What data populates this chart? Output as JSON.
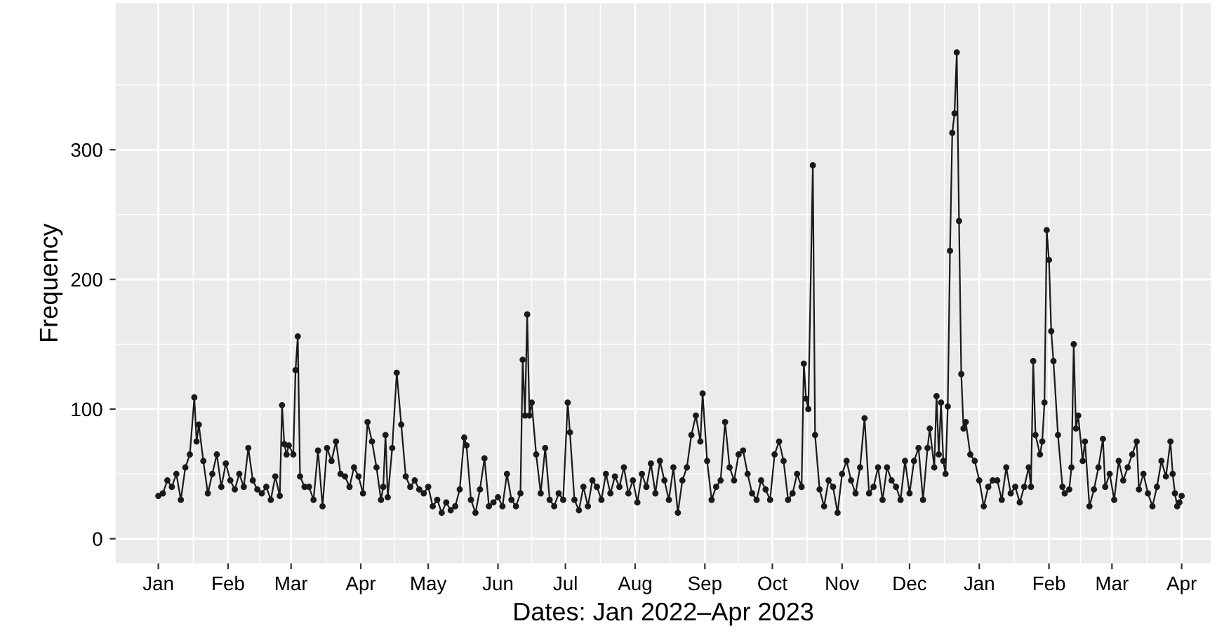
{
  "chart_data": {
    "type": "line",
    "xlabel": "Dates: Jan 2022–Apr 2023",
    "ylabel": "Frequency",
    "xlim": [
      "2021-12-13",
      "2023-04-14"
    ],
    "ylim": [
      -19,
      413
    ],
    "yticks": [
      0,
      100,
      200,
      300
    ],
    "xticks": [
      {
        "value": "2022-01-01",
        "label": "Jan"
      },
      {
        "value": "2022-02-01",
        "label": "Feb"
      },
      {
        "value": "2022-03-01",
        "label": "Mar"
      },
      {
        "value": "2022-04-01",
        "label": "Apr"
      },
      {
        "value": "2022-05-01",
        "label": "May"
      },
      {
        "value": "2022-06-01",
        "label": "Jun"
      },
      {
        "value": "2022-07-01",
        "label": "Jul"
      },
      {
        "value": "2022-08-01",
        "label": "Aug"
      },
      {
        "value": "2022-09-01",
        "label": "Sep"
      },
      {
        "value": "2022-10-01",
        "label": "Oct"
      },
      {
        "value": "2022-11-01",
        "label": "Nov"
      },
      {
        "value": "2022-12-01",
        "label": "Dec"
      },
      {
        "value": "2023-01-01",
        "label": "Jan"
      },
      {
        "value": "2023-02-01",
        "label": "Feb"
      },
      {
        "value": "2023-03-01",
        "label": "Mar"
      },
      {
        "value": "2023-04-01",
        "label": "Apr"
      }
    ],
    "grid": true,
    "marker": "circle",
    "line_style": "solid",
    "series": [
      {
        "color": "#1a1a1a",
        "x": [
          "2022-01-01",
          "2022-01-03",
          "2022-01-05",
          "2022-01-07",
          "2022-01-09",
          "2022-01-11",
          "2022-01-13",
          "2022-01-15",
          "2022-01-17",
          "2022-01-18",
          "2022-01-19",
          "2022-01-21",
          "2022-01-23",
          "2022-01-25",
          "2022-01-27",
          "2022-01-29",
          "2022-01-31",
          "2022-02-02",
          "2022-02-04",
          "2022-02-06",
          "2022-02-08",
          "2022-02-10",
          "2022-02-12",
          "2022-02-14",
          "2022-02-16",
          "2022-02-18",
          "2022-02-20",
          "2022-02-22",
          "2022-02-24",
          "2022-02-25",
          "2022-02-26",
          "2022-02-27",
          "2022-02-28",
          "2022-03-02",
          "2022-03-03",
          "2022-03-04",
          "2022-03-05",
          "2022-03-07",
          "2022-03-09",
          "2022-03-11",
          "2022-03-13",
          "2022-03-15",
          "2022-03-17",
          "2022-03-19",
          "2022-03-21",
          "2022-03-23",
          "2022-03-25",
          "2022-03-27",
          "2022-03-29",
          "2022-03-31",
          "2022-04-02",
          "2022-04-04",
          "2022-04-06",
          "2022-04-08",
          "2022-04-10",
          "2022-04-11",
          "2022-04-12",
          "2022-04-13",
          "2022-04-15",
          "2022-04-17",
          "2022-04-19",
          "2022-04-21",
          "2022-04-23",
          "2022-04-25",
          "2022-04-27",
          "2022-04-29",
          "2022-05-01",
          "2022-05-03",
          "2022-05-05",
          "2022-05-07",
          "2022-05-09",
          "2022-05-11",
          "2022-05-13",
          "2022-05-15",
          "2022-05-17",
          "2022-05-18",
          "2022-05-20",
          "2022-05-22",
          "2022-05-24",
          "2022-05-26",
          "2022-05-28",
          "2022-05-30",
          "2022-06-01",
          "2022-06-03",
          "2022-06-05",
          "2022-06-07",
          "2022-06-09",
          "2022-06-11",
          "2022-06-12",
          "2022-06-13",
          "2022-06-14",
          "2022-06-15",
          "2022-06-16",
          "2022-06-18",
          "2022-06-20",
          "2022-06-22",
          "2022-06-24",
          "2022-06-26",
          "2022-06-28",
          "2022-06-30",
          "2022-07-02",
          "2022-07-03",
          "2022-07-05",
          "2022-07-07",
          "2022-07-09",
          "2022-07-11",
          "2022-07-13",
          "2022-07-15",
          "2022-07-17",
          "2022-07-19",
          "2022-07-21",
          "2022-07-23",
          "2022-07-25",
          "2022-07-27",
          "2022-07-29",
          "2022-07-31",
          "2022-08-02",
          "2022-08-04",
          "2022-08-06",
          "2022-08-08",
          "2022-08-10",
          "2022-08-12",
          "2022-08-14",
          "2022-08-16",
          "2022-08-18",
          "2022-08-20",
          "2022-08-22",
          "2022-08-24",
          "2022-08-26",
          "2022-08-28",
          "2022-08-30",
          "2022-08-31",
          "2022-09-02",
          "2022-09-04",
          "2022-09-06",
          "2022-09-08",
          "2022-09-10",
          "2022-09-12",
          "2022-09-14",
          "2022-09-16",
          "2022-09-18",
          "2022-09-20",
          "2022-09-22",
          "2022-09-24",
          "2022-09-26",
          "2022-09-28",
          "2022-09-30",
          "2022-10-02",
          "2022-10-04",
          "2022-10-06",
          "2022-10-08",
          "2022-10-10",
          "2022-10-12",
          "2022-10-14",
          "2022-10-15",
          "2022-10-16",
          "2022-10-17",
          "2022-10-19",
          "2022-10-20",
          "2022-10-22",
          "2022-10-24",
          "2022-10-26",
          "2022-10-28",
          "2022-10-30",
          "2022-11-01",
          "2022-11-03",
          "2022-11-05",
          "2022-11-07",
          "2022-11-09",
          "2022-11-11",
          "2022-11-13",
          "2022-11-15",
          "2022-11-17",
          "2022-11-19",
          "2022-11-21",
          "2022-11-23",
          "2022-11-25",
          "2022-11-27",
          "2022-11-29",
          "2022-12-01",
          "2022-12-03",
          "2022-12-05",
          "2022-12-07",
          "2022-12-09",
          "2022-12-10",
          "2022-12-12",
          "2022-12-13",
          "2022-12-14",
          "2022-12-15",
          "2022-12-16",
          "2022-12-17",
          "2022-12-18",
          "2022-12-19",
          "2022-12-20",
          "2022-12-21",
          "2022-12-22",
          "2022-12-23",
          "2022-12-24",
          "2022-12-25",
          "2022-12-26",
          "2022-12-28",
          "2022-12-30",
          "2023-01-01",
          "2023-01-03",
          "2023-01-05",
          "2023-01-07",
          "2023-01-09",
          "2023-01-11",
          "2023-01-13",
          "2023-01-15",
          "2023-01-17",
          "2023-01-19",
          "2023-01-21",
          "2023-01-23",
          "2023-01-24",
          "2023-01-25",
          "2023-01-26",
          "2023-01-28",
          "2023-01-29",
          "2023-01-30",
          "2023-01-31",
          "2023-02-01",
          "2023-02-02",
          "2023-02-03",
          "2023-02-05",
          "2023-02-07",
          "2023-02-08",
          "2023-02-10",
          "2023-02-11",
          "2023-02-12",
          "2023-02-13",
          "2023-02-14",
          "2023-02-16",
          "2023-02-17",
          "2023-02-19",
          "2023-02-21",
          "2023-02-23",
          "2023-02-25",
          "2023-02-26",
          "2023-02-28",
          "2023-03-02",
          "2023-03-04",
          "2023-03-06",
          "2023-03-08",
          "2023-03-10",
          "2023-03-12",
          "2023-03-13",
          "2023-03-15",
          "2023-03-17",
          "2023-03-19",
          "2023-03-21",
          "2023-03-23",
          "2023-03-25",
          "2023-03-27",
          "2023-03-28",
          "2023-03-29",
          "2023-03-30",
          "2023-03-31",
          "2023-04-01"
        ],
        "values": [
          33,
          35,
          45,
          40,
          50,
          30,
          55,
          65,
          109,
          75,
          88,
          60,
          35,
          50,
          65,
          40,
          58,
          45,
          38,
          50,
          40,
          70,
          45,
          38,
          35,
          40,
          30,
          48,
          33,
          103,
          73,
          65,
          72,
          65,
          130,
          156,
          48,
          40,
          40,
          30,
          68,
          25,
          70,
          60,
          75,
          50,
          48,
          40,
          55,
          48,
          35,
          90,
          75,
          55,
          30,
          40,
          80,
          32,
          70,
          128,
          88,
          48,
          40,
          45,
          38,
          35,
          40,
          25,
          30,
          20,
          28,
          22,
          25,
          38,
          78,
          72,
          30,
          20,
          38,
          62,
          25,
          28,
          32,
          25,
          50,
          30,
          25,
          35,
          138,
          95,
          173,
          95,
          105,
          65,
          35,
          70,
          30,
          25,
          35,
          30,
          105,
          82,
          30,
          22,
          40,
          25,
          45,
          40,
          30,
          50,
          35,
          48,
          40,
          55,
          35,
          45,
          28,
          50,
          40,
          58,
          35,
          60,
          45,
          30,
          55,
          20,
          45,
          55,
          80,
          95,
          75,
          112,
          60,
          30,
          40,
          45,
          90,
          55,
          45,
          65,
          68,
          50,
          35,
          30,
          45,
          38,
          30,
          65,
          75,
          60,
          30,
          35,
          50,
          40,
          135,
          108,
          100,
          288,
          80,
          38,
          25,
          45,
          40,
          20,
          50,
          60,
          45,
          35,
          55,
          93,
          35,
          40,
          55,
          30,
          55,
          45,
          40,
          30,
          60,
          35,
          60,
          70,
          30,
          70,
          85,
          55,
          110,
          65,
          105,
          60,
          50,
          102,
          222,
          313,
          328,
          375,
          245,
          127,
          85,
          90,
          65,
          60,
          45,
          25,
          40,
          45,
          45,
          30,
          55,
          35,
          40,
          28,
          40,
          55,
          40,
          137,
          80,
          65,
          75,
          105,
          238,
          215,
          160,
          137,
          80,
          40,
          35,
          38,
          55,
          150,
          85,
          95,
          60,
          75,
          25,
          38,
          55,
          77,
          40,
          50,
          30,
          60,
          45,
          55,
          65,
          75,
          38,
          50,
          35,
          25,
          40,
          60,
          48,
          75,
          50,
          35,
          25,
          28,
          33
        ]
      }
    ]
  }
}
